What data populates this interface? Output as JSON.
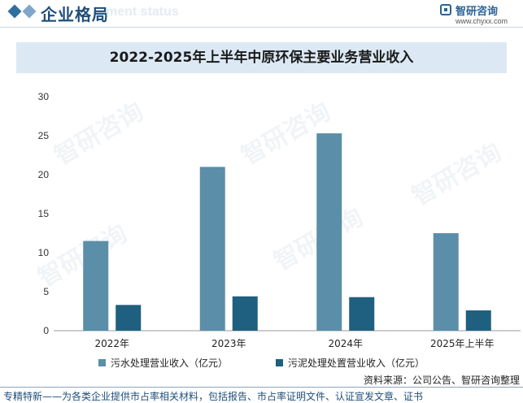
{
  "header": {
    "section_title": "企业格局",
    "ghost_text": "ment status",
    "logo_name": "智研咨询",
    "logo_url": "www.chyxx.com"
  },
  "watermark_text": "智研咨询",
  "chart_data": {
    "type": "bar",
    "title": "2022-2025年上半年中原环保主要业务营业收入",
    "categories": [
      "2022年",
      "2023年",
      "2024年",
      "2025年上半年"
    ],
    "series": [
      {
        "name": "污水处理营业收入（亿元）",
        "color": "#5b8ea8",
        "values": [
          11.5,
          21.0,
          25.3,
          12.5
        ]
      },
      {
        "name": "污泥处理处置营业收入（亿元）",
        "color": "#1f5f7f",
        "values": [
          3.3,
          4.4,
          4.3,
          2.6
        ]
      }
    ],
    "ylim": [
      0,
      30
    ],
    "yticks": [
      "0",
      "5",
      "10",
      "15",
      "20",
      "25",
      "30"
    ],
    "xlabel": "",
    "ylabel": "",
    "grid": false,
    "legend": "bottom"
  },
  "source": "资料来源：公司公告、智研咨询整理",
  "footer": "专精特新——为各类企业提供市占率相关材料，包括报告、市占率证明文件、认证宣发文章、证书"
}
